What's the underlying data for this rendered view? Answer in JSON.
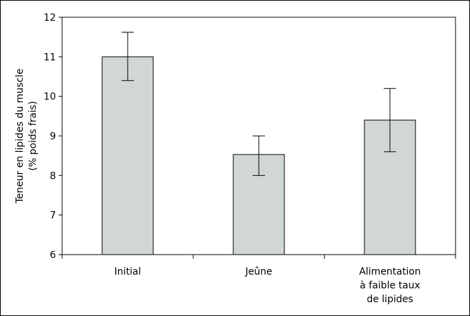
{
  "chart_data": {
    "type": "bar",
    "categories": [
      [
        "Initial"
      ],
      [
        "Jeûne"
      ],
      [
        "Alimentation",
        "à faible taux",
        "de lipides"
      ]
    ],
    "values": [
      11.0,
      8.53,
      9.4
    ],
    "error_low": [
      10.4,
      8.0,
      8.6
    ],
    "error_high": [
      11.62,
      9.0,
      10.2
    ],
    "ylabel": [
      "Teneur en lipides du muscle",
      "(% poids frais)"
    ],
    "xlabel": "",
    "ylim": [
      6,
      12
    ],
    "yticks": [
      6,
      7,
      8,
      9,
      10,
      11,
      12
    ],
    "grid": false,
    "legend": "none",
    "bar_color": "#d1d7d5",
    "bar_stroke": "#000000"
  }
}
